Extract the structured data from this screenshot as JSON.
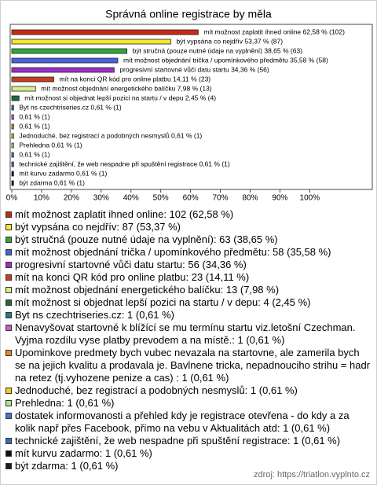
{
  "chart_data": {
    "type": "hbar",
    "title": "Správná online registrace by měla",
    "categories": [
      "mít možnost zaplatit ihned online",
      "být vypsána co nejdřív",
      "být stručná (pouze nutné údaje na vyplnění)",
      "mít možnost objednání trička / upomínkového předmětu",
      "progresivní startovné vůči datu startu",
      "mít na konci QR kód pro online platbu",
      "mít možnost objednání energetického balíčku",
      "mít možnost si objednat lepší pozici na startu / v depu",
      "Byt ns czechtriseries.cz",
      null,
      null,
      "Jednoduché, bez registrací a podobných nesmyslů",
      "Prehledna",
      null,
      "technické zajištění, že web nespadne při spuštění registrace",
      "mít kurvu zadarmo",
      "být zdarma"
    ],
    "values": [
      62.58,
      53.37,
      38.65,
      35.58,
      34.36,
      14.11,
      7.98,
      2.45,
      0.61,
      0.61,
      0.61,
      0.61,
      0.61,
      0.61,
      0.61,
      0.61,
      0.61
    ],
    "value_labels": [
      "mít možnost zaplatit ihned online 62,58 % (102)",
      "být vypsána co nejdřív 53,37 % (87)",
      "být stručná (pouze nutné údaje na vyplnění) 38,65 % (63)",
      "mít možnost objednání trička / upomínkového předmětu 35,58 % (58)",
      "progresivní startovné vůči datu startu 34,36 % (56)",
      "mít na konci QR kód pro online platbu 14,11 % (23)",
      "mít možnost objednání energetického balíčku 7,98 % (13)",
      "mít možnost si objednat lepší pozici na startu / v depu 2,45 % (4)",
      "Byt ns czechtriseries.cz 0,61 % (1)",
      "0,61 % (1)",
      "0,61 % (1)",
      "Jednoduché, bez registrací a podobných nesmyslů 0,61 % (1)",
      "Prehledna 0,61 % (1)",
      "0,61 % (1)",
      "technické zajištění, že web nespadne při spuštění registrace 0,61 % (1)",
      "mít kurvu zadarmo 0,61 % (1)",
      "být zdarma 0,61 % (1)"
    ],
    "legend_labels": [
      "mít možnost zaplatit ihned online: 102 (62,58 %)",
      "být vypsána co nejdřív: 87 (53,37 %)",
      "být stručná (pouze nutné údaje na vyplnění): 63 (38,65 %)",
      "mít možnost objednání trička / upomínkového předmětu: 58 (35,58 %)",
      "progresivní startovné vůči datu startu: 56 (34,36 %)",
      "mít na konci QR kód pro online platbu: 23 (14,11 %)",
      "mít možnost objednání energetického balíčku: 13 (7,98 %)",
      "mít možnost si objednat lepší pozici na startu / v depu: 4 (2,45 %)",
      "Byt ns czechtriseries.cz: 1 (0,61 %)",
      "Nenavyšovat startovné k blížící se mu termínu startu viz.letošní Czechman. Vyjma rozdílu vyse platby prevodem a na místě.: 1 (0,61 %)",
      "Upominkove predmety bych vubec nevazala na startovne, ale zamerila bych se na jejich kvalitu a prodavala je. Bavlnene tricka, nepadnouciho strihu = hadr na retez (tj.vyhozene penize a cas) : 1 (0,61 %)",
      "Jednoduché, bez registrací a podobných nesmyslů: 1 (0,61 %)",
      "Prehledna: 1 (0,61 %)",
      "dostatek informovanosti a přehled kdy je registrace otevřena - do kdy a za kolik např přes Facebook, přímo na vebu v Aktualitách atd: 1 (0,61 %)",
      "technické zajištění, že web nespadne při spuštění registrace: 1 (0,61 %)",
      "mít kurvu zadarmo: 1 (0,61 %)",
      "být zdarma: 1 (0,61 %)"
    ],
    "colors": [
      "#cc2a10",
      "#f4e830",
      "#2fa83a",
      "#4a5ee0",
      "#9a2fc8",
      "#c4401c",
      "#d8ec8a",
      "#1f6a3a",
      "#207a84",
      "#c860c8",
      "#e8862c",
      "#f0cc20",
      "#a6e888",
      "#5072cc",
      "#3a6cc0",
      "#101010",
      "#1c1c1c"
    ],
    "xlim": [
      0,
      121
    ],
    "xticks": [
      {
        "value": 0,
        "label": "0%"
      },
      {
        "value": 10,
        "label": "10%"
      },
      {
        "value": 20,
        "label": "20%"
      },
      {
        "value": 30,
        "label": "30%"
      },
      {
        "value": 40,
        "label": "40%"
      },
      {
        "value": 50,
        "label": "50%"
      },
      {
        "value": 60,
        "label": "60%"
      },
      {
        "value": 70,
        "label": "70%"
      },
      {
        "value": 80,
        "label": "80%"
      },
      {
        "value": 90,
        "label": "90%"
      },
      {
        "value": 100,
        "label": "100%"
      }
    ],
    "grid": false,
    "source": "zdroj: https://triatlon.vyplnto.cz"
  }
}
